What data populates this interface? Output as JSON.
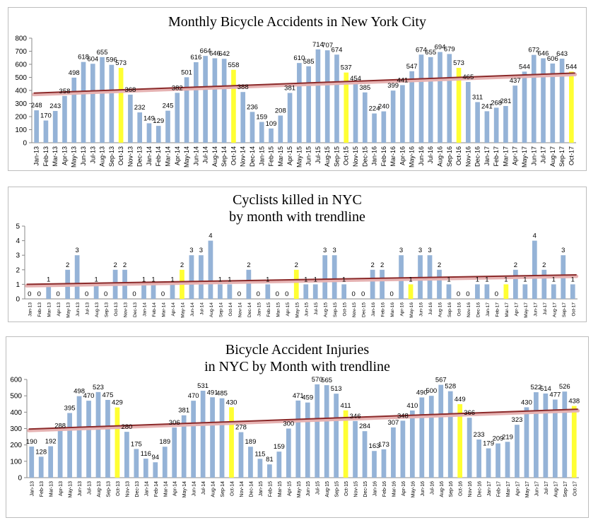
{
  "chart_data": [
    {
      "type": "bar",
      "title": "Monthly Bicycle Accidents in New York City",
      "categories": [
        "Jan-13",
        "Feb-13",
        "Mar-13",
        "Apr-13",
        "May-13",
        "Jun-13",
        "Jul-13",
        "Aug-13",
        "Sep-13",
        "Oct-13",
        "Nov-13",
        "Dec-13",
        "Jan-14",
        "Feb-14",
        "Mar-14",
        "Apr-14",
        "May-14",
        "Jun-14",
        "Jul-14",
        "Aug-14",
        "Sep-14",
        "Oct-14",
        "Nov-14",
        "Dec-14",
        "Jan-15",
        "Feb-15",
        "Mar-15",
        "Apr-15",
        "May-15",
        "Jun-15",
        "Jul-15",
        "Aug-15",
        "Sep-15",
        "Oct-15",
        "Nov-15",
        "Dec-15",
        "Jan-16",
        "Feb-16",
        "Mar-16",
        "Apr-16",
        "May-16",
        "Jun-16",
        "Jul-16",
        "Aug-16",
        "Sep-16",
        "Oct-16",
        "Nov-16",
        "Dec-16",
        "Jan-17",
        "Feb-17",
        "Mar-17",
        "Apr-17",
        "May-17",
        "Jun-17",
        "Jul-17",
        "Aug-17",
        "Sep-17",
        "Oct-17"
      ],
      "values": [
        248,
        170,
        243,
        358,
        498,
        618,
        604,
        655,
        596,
        573,
        368,
        232,
        149,
        129,
        245,
        382,
        501,
        616,
        664,
        646,
        642,
        558,
        388,
        236,
        159,
        109,
        208,
        381,
        610,
        585,
        714,
        707,
        674,
        537,
        454,
        385,
        224,
        240,
        399,
        441,
        547,
        674,
        655,
        694,
        679,
        573,
        465,
        311,
        241,
        268,
        281,
        437,
        544,
        672,
        646,
        606,
        643,
        544
      ],
      "highlighted": [
        "Oct-13",
        "Oct-14",
        "Oct-15",
        "Oct-16",
        "Oct-17"
      ],
      "ylim": [
        0,
        800
      ],
      "yticks": [
        0,
        100,
        200,
        300,
        400,
        500,
        600,
        700,
        800
      ],
      "trendline": {
        "start": 380,
        "end": 533
      },
      "colors": {
        "bar": "#95b3d7",
        "highlight": "#ffff33",
        "trend": "#8b2a2a",
        "trend_shadow": "#e6b3b3"
      }
    },
    {
      "type": "bar",
      "title": "Cyclists killed in NYC\nby month with trendline",
      "categories": [
        "Jan-13",
        "Feb-13",
        "Mar-13",
        "Apr-13",
        "May-13",
        "Jun-13",
        "Jul-13",
        "Aug-13",
        "Sep-13",
        "Oct-13",
        "Nov-13",
        "Dec-13",
        "Jan-14",
        "Feb-14",
        "Mar-14",
        "Apr-14",
        "May-14",
        "Jun-14",
        "Jul-14",
        "Aug-14",
        "Sep-14",
        "Oct-14",
        "Nov-14",
        "Dec-14",
        "Jan-15",
        "Feb-15",
        "Mar-15",
        "Apr-15",
        "May-15",
        "Jun-15",
        "Jul-15",
        "Aug-15",
        "Sep-15",
        "Oct-15",
        "Nov-15",
        "Dec-15",
        "Jan-16",
        "Feb-16",
        "Mar-16",
        "Apr-16",
        "May-16",
        "Jun-16",
        "Jul-16",
        "Aug-16",
        "Sep-16",
        "Oct-16",
        "Nov-16",
        "Dec-16",
        "Jan-17",
        "Feb-17",
        "Mar-17",
        "Apr-17",
        "May-17",
        "Jun-17",
        "Jul-17",
        "Aug-17",
        "Sep-17",
        "Oct-17"
      ],
      "values": [
        0,
        0,
        1,
        0,
        2,
        3,
        0,
        1,
        0,
        2,
        2,
        0,
        1,
        1,
        0,
        1,
        2,
        3,
        3,
        4,
        1,
        1,
        0,
        2,
        0,
        1,
        0,
        0,
        2,
        1,
        1,
        3,
        3,
        1,
        0,
        0,
        2,
        2,
        0,
        3,
        1,
        3,
        3,
        2,
        1,
        0,
        0,
        1,
        1,
        0,
        1,
        2,
        1,
        4,
        2,
        1,
        3,
        1
      ],
      "highlighted": [
        "May-14",
        "May-15",
        "May-16",
        "Mar-17"
      ],
      "ylim": [
        0,
        5
      ],
      "yticks": [
        0,
        1,
        2,
        3,
        4,
        5
      ],
      "trendline": {
        "start": 1.0,
        "end": 1.65
      },
      "colors": {
        "bar": "#95b3d7",
        "highlight": "#ffff33",
        "trend": "#8b2a2a",
        "trend_shadow": "#e6b3b3"
      }
    },
    {
      "type": "bar",
      "title": "Bicycle Accident Injuries\nin NYC by Month with trendline",
      "categories": [
        "Jan-13",
        "Feb-13",
        "Mar-13",
        "Apr-13",
        "May-13",
        "Jun-13",
        "Jul-13",
        "Aug-13",
        "Sep-13",
        "Oct-13",
        "Nov-13",
        "Dec-13",
        "Jan-14",
        "Feb-14",
        "Mar-14",
        "Apr-14",
        "May-14",
        "Jun-14",
        "Jul-14",
        "Aug-14",
        "Sep-14",
        "Oct-14",
        "Nov-14",
        "Dec-14",
        "Jan-15",
        "Feb-15",
        "Mar-15",
        "Apr-15",
        "May-15",
        "Jun-15",
        "Jul-15",
        "Aug-15",
        "Sep-15",
        "Oct-15",
        "Nov-15",
        "Dec-15",
        "Jan-16",
        "Feb-16",
        "Mar-16",
        "Apr-16",
        "May-16",
        "Jun-16",
        "Jul-16",
        "Aug-16",
        "Sep-16",
        "Oct-16",
        "Nov-16",
        "Dec-16",
        "Jan-17",
        "Feb-17",
        "Mar-17",
        "Apr-17",
        "May-17",
        "Jun-17",
        "Jul-17",
        "Aug-17",
        "Sep-17",
        "Oct-17"
      ],
      "values": [
        190,
        128,
        192,
        288,
        395,
        498,
        470,
        523,
        475,
        429,
        280,
        175,
        116,
        94,
        189,
        306,
        381,
        470,
        531,
        491,
        485,
        430,
        278,
        189,
        115,
        81,
        159,
        300,
        471,
        459,
        570,
        565,
        513,
        411,
        346,
        284,
        163,
        173,
        307,
        348,
        410,
        490,
        500,
        567,
        528,
        449,
        366,
        233,
        179,
        209,
        219,
        323,
        430,
        522,
        514,
        477,
        526,
        438
      ],
      "highlighted": [
        "Oct-13",
        "Oct-14",
        "Oct-15",
        "Oct-16",
        "Oct-17"
      ],
      "ylim": [
        0,
        600
      ],
      "yticks": [
        0,
        100,
        200,
        300,
        400,
        500,
        600
      ],
      "trendline": {
        "start": 297,
        "end": 418
      },
      "colors": {
        "bar": "#95b3d7",
        "highlight": "#ffff33",
        "trend": "#8b2a2a",
        "trend_shadow": "#e6b3b3"
      }
    }
  ]
}
